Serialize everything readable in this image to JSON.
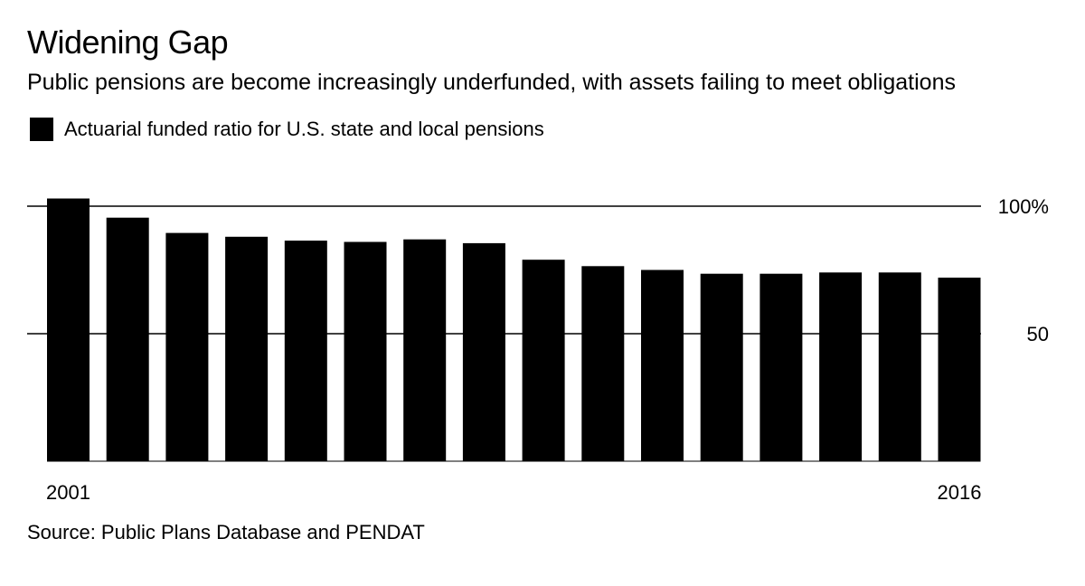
{
  "title": "Widening Gap",
  "subtitle": "Public pensions are become increasingly underfunded, with assets failing to meet obligations",
  "source": "Source: Public Plans Database and PENDAT",
  "colors": {
    "bar": "#000000",
    "gridline": "#000000",
    "background": "#ffffff"
  },
  "chart_data": {
    "type": "bar",
    "categories": [
      "2001",
      "2002",
      "2003",
      "2004",
      "2005",
      "2006",
      "2007",
      "2008",
      "2009",
      "2010",
      "2011",
      "2012",
      "2013",
      "2014",
      "2015",
      "2016"
    ],
    "series": [
      {
        "name": "Actuarial funded ratio for U.S. state and local pensions",
        "values": [
          103,
          95.5,
          89.5,
          88,
          86.5,
          86,
          87,
          85.5,
          79,
          76.5,
          75,
          73.5,
          73.5,
          74,
          74,
          72
        ]
      }
    ],
    "x_tick_labels": [
      "2001",
      "2016"
    ],
    "y_ticks": [
      {
        "value": 100,
        "label": "100%"
      },
      {
        "value": 50,
        "label": "50"
      }
    ],
    "ylim": [
      0,
      100
    ],
    "gridlines": true,
    "legend_position": "top-left",
    "y_axis_side": "right"
  }
}
